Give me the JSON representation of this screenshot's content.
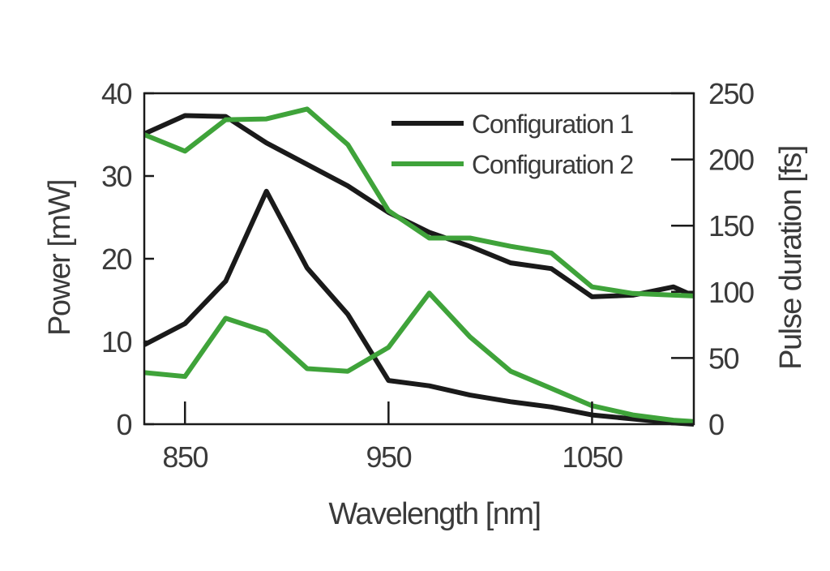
{
  "chart_data": {
    "type": "line",
    "xlabel": "Wavelength [nm]",
    "ylabel_left": "Power [mW]",
    "ylabel_right": "Pulse duration [fs]",
    "xlim": [
      830,
      1100
    ],
    "ylim_left": [
      0,
      40
    ],
    "ylim_right": [
      0,
      250
    ],
    "x_ticks": [
      850,
      950,
      1050
    ],
    "y_ticks_left": [
      0,
      10,
      20,
      30,
      40
    ],
    "y_ticks_right": [
      0,
      50,
      100,
      150,
      200,
      250
    ],
    "grid": false,
    "legend_position": "top-right",
    "colors": {
      "configuration_1": "#1a1a1a",
      "configuration_2": "#3fa33a",
      "axes": "#1a1a1a"
    },
    "series": [
      {
        "name": "Configuration 1",
        "axis": "left",
        "quantity": "power",
        "x": [
          830,
          850,
          870,
          890,
          910,
          930,
          950,
          970,
          990,
          1010,
          1030,
          1050,
          1070,
          1090,
          1100
        ],
        "y": [
          35.1,
          37.3,
          37.2,
          34.0,
          31.4,
          28.8,
          25.6,
          23.2,
          21.5,
          19.5,
          18.8,
          15.4,
          15.6,
          16.6,
          15.5
        ]
      },
      {
        "name": "Configuration 2",
        "axis": "left",
        "quantity": "power",
        "x": [
          830,
          850,
          870,
          890,
          910,
          930,
          950,
          970,
          990,
          1010,
          1030,
          1050,
          1070,
          1090,
          1100
        ],
        "y": [
          35.0,
          33.0,
          36.8,
          36.9,
          38.1,
          33.8,
          25.8,
          22.5,
          22.5,
          21.5,
          20.7,
          16.6,
          15.8,
          15.6,
          15.5
        ]
      },
      {
        "name": "Configuration 1",
        "axis": "right",
        "quantity": "pulse_duration",
        "x": [
          830,
          850,
          870,
          890,
          910,
          930,
          950,
          970,
          990,
          1010,
          1030,
          1050,
          1070,
          1090,
          1100
        ],
        "y": [
          60,
          76,
          108,
          176,
          118,
          83,
          33,
          29,
          22,
          17,
          13,
          7,
          4,
          1,
          0
        ]
      },
      {
        "name": "Configuration 2",
        "axis": "right",
        "quantity": "pulse_duration",
        "x": [
          830,
          850,
          870,
          890,
          910,
          930,
          950,
          970,
          990,
          1010,
          1030,
          1050,
          1070,
          1090,
          1100
        ],
        "y": [
          39,
          36,
          80,
          70,
          42,
          40,
          58,
          99,
          66,
          40,
          27,
          14,
          7,
          3,
          2
        ]
      }
    ]
  }
}
